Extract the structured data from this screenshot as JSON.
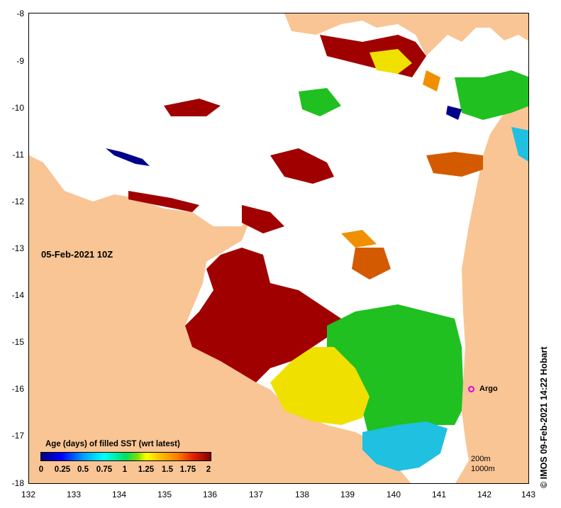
{
  "map": {
    "date": "05-Feb-2021 10Z",
    "x_ticks": [
      "132",
      "133",
      "134",
      "135",
      "136",
      "137",
      "138",
      "139",
      "140",
      "141",
      "142",
      "143"
    ],
    "y_ticks": [
      "-8",
      "-9",
      "-10",
      "-11",
      "-12",
      "-13",
      "-14",
      "-15",
      "-16",
      "-17",
      "-18"
    ],
    "credit": "© IMOS 09-Feb-2021 14:22 Hobart",
    "argo_label": "Argo",
    "contour_200": "200m",
    "contour_1000": "1000m"
  },
  "legend": {
    "title": "Age (days) of filled SST (wrt latest)",
    "ticks": [
      "0",
      "0.25",
      "0.5",
      "0.75",
      "1",
      "1.25",
      "1.5",
      "1.75",
      "2"
    ]
  },
  "colors": {
    "land": "#f9c594",
    "sea_nodata": "#ffffff",
    "age_2": "#a00000",
    "age_1_75": "#d45a00",
    "age_1_5": "#f09000",
    "age_1_25": "#f0e000",
    "age_1": "#20c020",
    "age_0_5": "#20c0e0",
    "age_0": "#00008a",
    "argo": "#e000e0"
  }
}
